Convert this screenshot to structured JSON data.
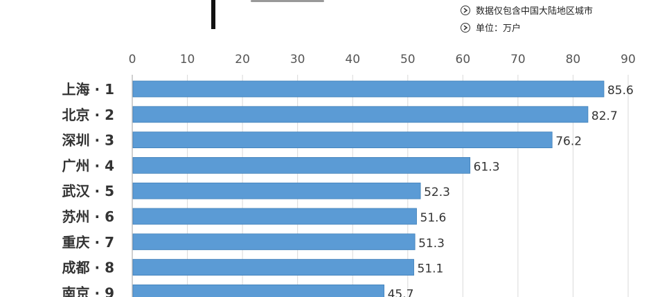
{
  "notes": [
    {
      "text": "数据仅包含中国大陆地区城市",
      "icon": "arrow-circle-icon"
    },
    {
      "text": "单位：万户",
      "icon": "arrow-circle-icon"
    }
  ],
  "chart_data": {
    "type": "bar",
    "orientation": "horizontal",
    "categories": [
      "上海 · 1",
      "北京 · 2",
      "深圳 · 3",
      "广州 · 4",
      "武汉 · 5",
      "苏州 · 6",
      "重庆 · 7",
      "成都 · 8",
      "南京 · 9"
    ],
    "values": [
      85.6,
      82.7,
      76.2,
      61.3,
      52.3,
      51.6,
      51.3,
      51.1,
      45.7
    ],
    "xlim": [
      0,
      90
    ],
    "ticks": [
      "0",
      "10",
      "20",
      "30",
      "40",
      "50",
      "60",
      "70",
      "80",
      "90"
    ],
    "grid": true,
    "color": "#5b9bd5"
  }
}
